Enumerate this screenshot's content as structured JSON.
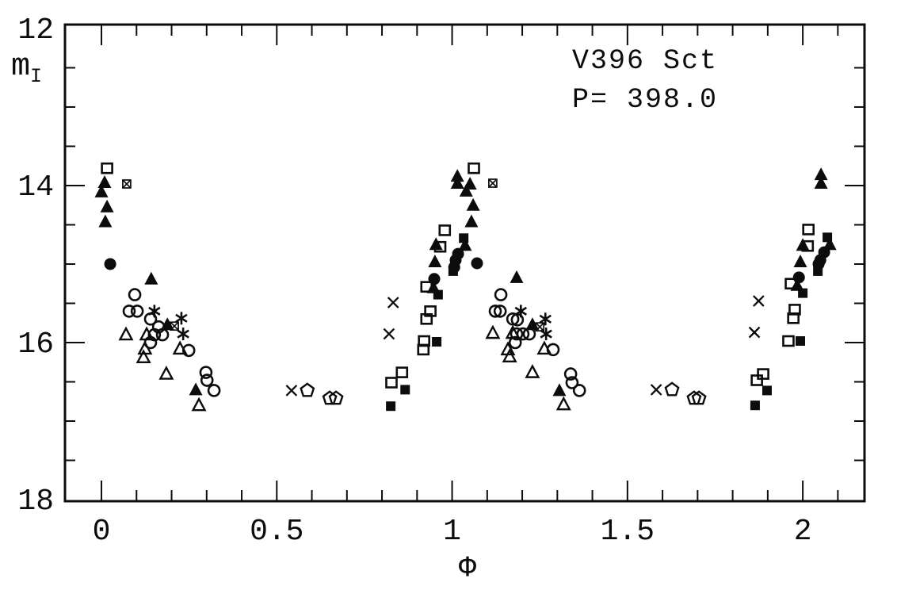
{
  "chart_data": {
    "type": "scatter",
    "title": "V396 Sct",
    "period_label": "P= 398.0",
    "xlabel": "Φ",
    "ylabel": {
      "main": "m",
      "sub": "I"
    },
    "grid": false,
    "legend": "none",
    "x_axis": {
      "min": -0.104,
      "max": 2.176,
      "major_ticks": [
        {
          "v": 0,
          "label": "0"
        },
        {
          "v": 0.5,
          "label": "0.5"
        },
        {
          "v": 1,
          "label": "1"
        },
        {
          "v": 1.5,
          "label": "1.5"
        },
        {
          "v": 2,
          "label": "2"
        }
      ],
      "minor_step": 0.1
    },
    "y_axis": {
      "min": 11.95,
      "max": 18.02,
      "inverted_magnitude_scale": true,
      "major_ticks": [
        {
          "v": 12,
          "label": "12"
        },
        {
          "v": 14,
          "label": "14"
        },
        {
          "v": 16,
          "label": "16"
        },
        {
          "v": 18,
          "label": "18"
        }
      ],
      "minor_step": 0.5
    },
    "ink_color": "#0c0c0c",
    "series": [
      {
        "name": "open-square",
        "symbol": "square-open",
        "points": [
          [
            0.016,
            13.78
          ],
          [
            0.827,
            16.51
          ],
          [
            0.857,
            16.38
          ],
          [
            0.918,
            16.09
          ],
          [
            0.92,
            15.98
          ],
          [
            0.927,
            15.7
          ],
          [
            0.938,
            15.6
          ],
          [
            0.927,
            15.29
          ],
          [
            0.966,
            14.78
          ],
          [
            0.979,
            14.57
          ],
          [
            1.062,
            13.78
          ],
          [
            1.869,
            16.48
          ],
          [
            1.887,
            16.4
          ],
          [
            1.959,
            15.98
          ],
          [
            1.973,
            15.69
          ],
          [
            1.977,
            15.58
          ],
          [
            1.966,
            15.25
          ],
          [
            2.014,
            14.77
          ],
          [
            2.016,
            14.56
          ]
        ]
      },
      {
        "name": "filled-square",
        "symbol": "square-filled",
        "points": [
          [
            0.825,
            16.81
          ],
          [
            0.866,
            16.6
          ],
          [
            0.956,
            15.99
          ],
          [
            0.96,
            15.39
          ],
          [
            1.003,
            15.09
          ],
          [
            1.033,
            14.67
          ],
          [
            1.864,
            16.8
          ],
          [
            1.898,
            16.61
          ],
          [
            1.993,
            15.98
          ],
          [
            2.0,
            15.37
          ],
          [
            2.043,
            15.09
          ],
          [
            2.07,
            14.66
          ]
        ]
      },
      {
        "name": "open-circle",
        "symbol": "circle-open",
        "points": [
          [
            0.095,
            15.39
          ],
          [
            0.079,
            15.6
          ],
          [
            0.102,
            15.6
          ],
          [
            0.14,
            15.7
          ],
          [
            0.163,
            15.8
          ],
          [
            0.151,
            15.9
          ],
          [
            0.174,
            15.9
          ],
          [
            0.14,
            16.0
          ],
          [
            0.249,
            16.1
          ],
          [
            0.298,
            16.38
          ],
          [
            0.301,
            16.48
          ],
          [
            0.321,
            16.61
          ],
          [
            1.139,
            15.39
          ],
          [
            1.123,
            15.6
          ],
          [
            1.137,
            15.6
          ],
          [
            1.173,
            15.7
          ],
          [
            1.186,
            15.71
          ],
          [
            1.184,
            15.89
          ],
          [
            1.202,
            15.89
          ],
          [
            1.22,
            15.89
          ],
          [
            1.18,
            16.0
          ],
          [
            1.288,
            16.09
          ],
          [
            1.338,
            16.4
          ],
          [
            1.342,
            16.51
          ],
          [
            1.363,
            16.61
          ]
        ]
      },
      {
        "name": "filled-circle",
        "symbol": "circle-filled",
        "points": [
          [
            0.025,
            15.0
          ],
          [
            0.949,
            15.19
          ],
          [
            1.006,
            15.04
          ],
          [
            1.01,
            14.95
          ],
          [
            1.017,
            14.87
          ],
          [
            1.071,
            14.99
          ],
          [
            1.989,
            15.17
          ],
          [
            2.045,
            15.0
          ],
          [
            2.05,
            14.95
          ],
          [
            2.061,
            14.85
          ]
        ]
      },
      {
        "name": "open-triangle",
        "symbol": "triangle-open",
        "points": [
          [
            0.07,
            15.9
          ],
          [
            0.129,
            15.9
          ],
          [
            0.124,
            16.08
          ],
          [
            0.224,
            16.08
          ],
          [
            0.12,
            16.19
          ],
          [
            0.185,
            16.4
          ],
          [
            0.278,
            16.8
          ],
          [
            1.116,
            15.88
          ],
          [
            1.173,
            15.88
          ],
          [
            1.159,
            16.09
          ],
          [
            1.263,
            16.08
          ],
          [
            1.164,
            16.18
          ],
          [
            1.229,
            16.38
          ],
          [
            1.318,
            16.79
          ]
        ]
      },
      {
        "name": "filled-triangle",
        "symbol": "triangle-filled",
        "points": [
          [
            0.009,
            13.96
          ],
          [
            0.0,
            14.08
          ],
          [
            0.016,
            14.27
          ],
          [
            0.011,
            14.46
          ],
          [
            0.142,
            15.19
          ],
          [
            0.188,
            15.77
          ],
          [
            0.269,
            16.6
          ],
          [
            0.954,
            14.75
          ],
          [
            0.947,
            15.3
          ],
          [
            0.951,
            14.97
          ],
          [
            1.015,
            13.88
          ],
          [
            1.015,
            13.97
          ],
          [
            1.051,
            13.98
          ],
          [
            1.04,
            14.07
          ],
          [
            1.06,
            14.25
          ],
          [
            1.055,
            14.46
          ],
          [
            1.184,
            15.17
          ],
          [
            1.229,
            15.77
          ],
          [
            1.306,
            16.61
          ],
          [
            1.984,
            15.27
          ],
          [
            1.993,
            14.97
          ],
          [
            2.0,
            14.76
          ],
          [
            2.052,
            13.86
          ],
          [
            2.052,
            13.97
          ]
        ]
      },
      {
        "name": "filled-triangle-errorbar",
        "symbol": "triangle-errorbar",
        "points": [
          [
            1.037,
            14.76
          ],
          [
            2.077,
            14.75
          ]
        ]
      },
      {
        "name": "asterisk",
        "symbol": "asterisk",
        "points": [
          [
            0.151,
            15.6
          ],
          [
            0.228,
            15.69
          ],
          [
            0.233,
            15.89
          ],
          [
            1.196,
            15.6
          ],
          [
            1.266,
            15.7
          ],
          [
            1.268,
            15.89
          ]
        ]
      },
      {
        "name": "square-with-x",
        "symbol": "square-x",
        "points": [
          [
            0.072,
            13.98
          ],
          [
            1.116,
            13.97
          ],
          [
            0.208,
            15.79
          ],
          [
            1.25,
            15.8
          ]
        ]
      },
      {
        "name": "cross",
        "symbol": "cross",
        "points": [
          [
            0.542,
            16.61
          ],
          [
            0.832,
            15.49
          ],
          [
            0.82,
            15.89
          ],
          [
            1.582,
            16.6
          ],
          [
            1.874,
            15.47
          ],
          [
            1.862,
            15.87
          ]
        ]
      },
      {
        "name": "open-pentagon",
        "symbol": "pentagon-open",
        "points": [
          [
            0.587,
            16.61
          ],
          [
            0.651,
            16.71
          ],
          [
            0.669,
            16.71
          ],
          [
            1.627,
            16.6
          ],
          [
            1.69,
            16.71
          ],
          [
            1.704,
            16.71
          ]
        ]
      }
    ]
  }
}
